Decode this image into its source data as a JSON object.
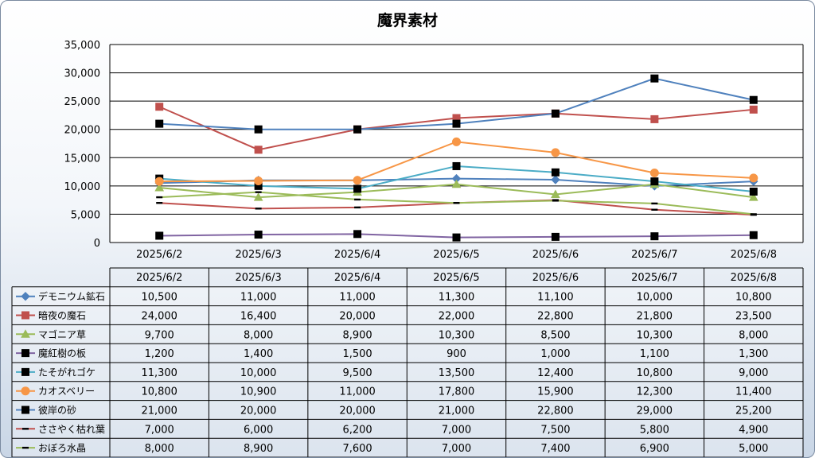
{
  "chart_data": {
    "type": "line",
    "title": "魔界素材",
    "categories": [
      "2025/6/2",
      "2025/6/3",
      "2025/6/4",
      "2025/6/5",
      "2025/6/6",
      "2025/6/7",
      "2025/6/8"
    ],
    "ylim": [
      0,
      35000
    ],
    "yticks": [
      "0",
      "5,000",
      "10,000",
      "15,000",
      "20,000",
      "25,000",
      "30,000",
      "35,000"
    ],
    "grid": true,
    "legend": "data-table",
    "series": [
      {
        "name": "デモニウム鉱石",
        "color": "#4f81bd",
        "marker": "diamond",
        "values": [
          10500,
          11000,
          11000,
          11300,
          11100,
          10000,
          10800
        ],
        "labels": [
          "10,500",
          "11,000",
          "11,000",
          "11,300",
          "11,100",
          "10,000",
          "10,800"
        ]
      },
      {
        "name": "暗夜の魔石",
        "color": "#c0504d",
        "marker": "square",
        "values": [
          24000,
          16400,
          20000,
          22000,
          22800,
          21800,
          23500
        ],
        "labels": [
          "24,000",
          "16,400",
          "20,000",
          "22,000",
          "22,800",
          "21,800",
          "23,500"
        ]
      },
      {
        "name": "マゴニア草",
        "color": "#9bbb59",
        "marker": "triangle",
        "values": [
          9700,
          8000,
          8900,
          10300,
          8500,
          10300,
          8000
        ],
        "labels": [
          "9,700",
          "8,000",
          "8,900",
          "10,300",
          "8,500",
          "10,300",
          "8,000"
        ]
      },
      {
        "name": "魔紅樹の板",
        "color": "#8064a2",
        "marker": "blacksquare",
        "values": [
          1200,
          1400,
          1500,
          900,
          1000,
          1100,
          1300
        ],
        "labels": [
          "1,200",
          "1,400",
          "1,500",
          "900",
          "1,000",
          "1,100",
          "1,300"
        ]
      },
      {
        "name": "たそがれゴケ",
        "color": "#4bacc6",
        "marker": "blacksquare",
        "values": [
          11300,
          10000,
          9500,
          13500,
          12400,
          10800,
          9000
        ],
        "labels": [
          "11,300",
          "10,000",
          "9,500",
          "13,500",
          "12,400",
          "10,800",
          "9,000"
        ]
      },
      {
        "name": "カオスベリー",
        "color": "#f79646",
        "marker": "circle",
        "values": [
          10800,
          10900,
          11000,
          17800,
          15900,
          12300,
          11400
        ],
        "labels": [
          "10,800",
          "10,900",
          "11,000",
          "17,800",
          "15,900",
          "12,300",
          "11,400"
        ]
      },
      {
        "name": "彼岸の砂",
        "color": "#4f81bd",
        "marker": "blacksquare",
        "values": [
          21000,
          20000,
          20000,
          21000,
          22800,
          29000,
          25200
        ],
        "labels": [
          "21,000",
          "20,000",
          "20,000",
          "21,000",
          "22,800",
          "29,000",
          "25,200"
        ]
      },
      {
        "name": "ささやく枯れ葉",
        "color": "#c0504d",
        "marker": "dash",
        "values": [
          7000,
          6000,
          6200,
          7000,
          7500,
          5800,
          4900
        ],
        "labels": [
          "7,000",
          "6,000",
          "6,200",
          "7,000",
          "7,500",
          "5,800",
          "4,900"
        ]
      },
      {
        "name": "おぼろ水晶",
        "color": "#9bbb59",
        "marker": "dash",
        "values": [
          8000,
          8900,
          7600,
          7000,
          7400,
          6900,
          5000
        ],
        "labels": [
          "8,000",
          "8,900",
          "7,600",
          "7,000",
          "7,400",
          "6,900",
          "5,000"
        ]
      }
    ]
  }
}
